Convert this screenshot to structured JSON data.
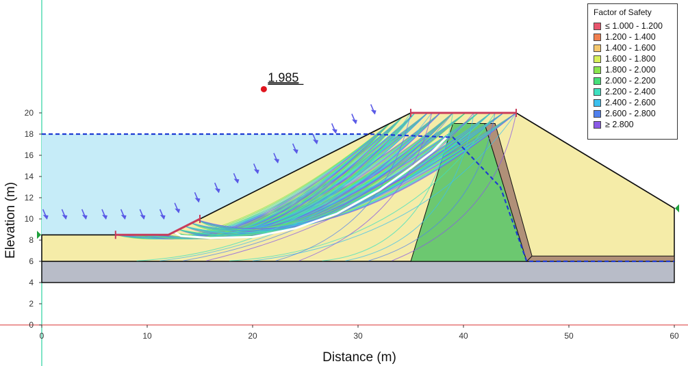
{
  "chart": {
    "x_axis_title": "Distance (m)",
    "y_axis_title": "Elevation (m)",
    "x_ticks": [
      0,
      10,
      20,
      30,
      40,
      50,
      60
    ],
    "y_ticks": [
      0,
      2,
      4,
      6,
      8,
      10,
      12,
      14,
      16,
      18,
      20
    ],
    "x_range": [
      -4,
      62.5
    ],
    "y_range": [
      -4,
      30.5
    ]
  },
  "critical_slip": {
    "factor_of_safety": "1.985",
    "center": [
      21,
      22.3
    ],
    "color": "#e0141e"
  },
  "legend": {
    "title": "Factor of Safety",
    "entries": [
      {
        "label": "≤ 1.000 - 1.200",
        "color": "#e8556e"
      },
      {
        "label": "1.200 - 1.400",
        "color": "#f08050"
      },
      {
        "label": "1.400 - 1.600",
        "color": "#f5c86e"
      },
      {
        "label": "1.600 - 1.800",
        "color": "#d8f05a"
      },
      {
        "label": "1.800 - 2.000",
        "color": "#8ae64e"
      },
      {
        "label": "2.000 - 2.200",
        "color": "#46e07a"
      },
      {
        "label": "2.200 - 2.400",
        "color": "#3ee0c0"
      },
      {
        "label": "2.400 - 2.600",
        "color": "#3cc0ee"
      },
      {
        "label": "2.600 - 2.800",
        "color": "#5080ee"
      },
      {
        "label": "≥ 2.800",
        "color": "#8a5ae6"
      }
    ]
  },
  "materials": {
    "embankment_color": "#f5eca8",
    "foundation_color": "#b8bcc8",
    "core_color": "#6cc870",
    "filter_color": "#b09078",
    "reservoir_color": "#c6ecf8"
  },
  "geometry": {
    "embankment": [
      [
        0,
        6
      ],
      [
        0,
        8.5
      ],
      [
        12,
        8.5
      ],
      [
        35,
        20
      ],
      [
        45,
        20
      ],
      [
        60,
        11
      ],
      [
        60,
        6
      ]
    ],
    "core": [
      [
        39,
        19
      ],
      [
        42,
        19
      ],
      [
        46,
        6
      ],
      [
        35,
        6
      ]
    ],
    "filter": [
      [
        42,
        19
      ],
      [
        43,
        19
      ],
      [
        46.5,
        6.5
      ],
      [
        46,
        6
      ]
    ],
    "toe_drain": [
      [
        46,
        6
      ],
      [
        46.5,
        6.5
      ],
      [
        60,
        6.5
      ],
      [
        60,
        6
      ]
    ],
    "foundation": [
      [
        0,
        4
      ],
      [
        60,
        4
      ],
      [
        60,
        6
      ],
      [
        0,
        6
      ]
    ],
    "water_table": [
      [
        0,
        18
      ],
      [
        31,
        18
      ],
      [
        39,
        17.7
      ],
      [
        43.5,
        13
      ],
      [
        46,
        6
      ],
      [
        60,
        6
      ]
    ],
    "reservoir": [
      [
        0,
        8.5
      ],
      [
        0,
        18
      ],
      [
        31,
        18
      ],
      [
        12,
        8.5
      ]
    ],
    "slip_search_segment_1": [
      [
        7,
        8.5
      ],
      [
        12,
        8.5
      ],
      [
        15,
        10
      ]
    ],
    "slip_search_segment_2": [
      [
        35,
        20
      ],
      [
        45,
        20
      ]
    ],
    "critical_slip_surface": [
      [
        12.5,
        8.8
      ],
      [
        13.2,
        8.4
      ],
      [
        16,
        8.2
      ],
      [
        20,
        8.3
      ],
      [
        24,
        9.1
      ],
      [
        28,
        10.5
      ],
      [
        32,
        12.7
      ],
      [
        35,
        14.8
      ],
      [
        37,
        16.3
      ],
      [
        38.5,
        17.8
      ]
    ],
    "load_arrows": [
      [
        0.5,
        10
      ],
      [
        2.3,
        10
      ],
      [
        4.2,
        10
      ],
      [
        6.1,
        10
      ],
      [
        7.9,
        10
      ],
      [
        9.7,
        10
      ],
      [
        11.6,
        10
      ],
      [
        13,
        10.6
      ],
      [
        14.9,
        11.6
      ],
      [
        16.8,
        12.5
      ],
      [
        18.6,
        13.4
      ],
      [
        20.5,
        14.3
      ],
      [
        22.4,
        15.3
      ],
      [
        24.2,
        16.2
      ],
      [
        26.1,
        17.1
      ],
      [
        27.9,
        18.1
      ],
      [
        29.8,
        19
      ],
      [
        31.6,
        19.9
      ]
    ],
    "boundary_markers": [
      [
        0,
        8.5
      ],
      [
        60,
        11
      ]
    ]
  }
}
